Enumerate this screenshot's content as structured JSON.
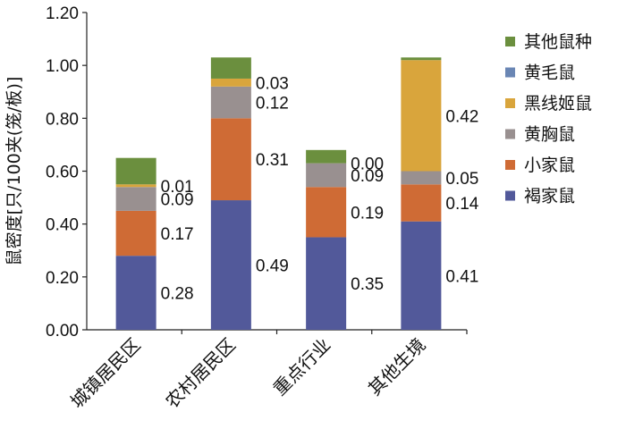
{
  "chart_data": {
    "type": "bar",
    "stacked": true,
    "title": "",
    "xlabel": "",
    "ylabel": "鼠密度[只/100夹(笼/板)]",
    "ylim": [
      0,
      1.2
    ],
    "yticks": [
      "0.00",
      "0.20",
      "0.40",
      "0.60",
      "0.80",
      "1.00",
      "1.20"
    ],
    "grid": false,
    "legend_position": "right",
    "categories": [
      "城镇居民区",
      "农村居民区",
      "重点行业",
      "其他生境"
    ],
    "series": [
      {
        "name": "褐家鼠",
        "color": "#52599a",
        "values": [
          0.28,
          0.49,
          0.35,
          0.41
        ],
        "labels": [
          "0.28",
          "0.49",
          "0.35",
          "0.41"
        ]
      },
      {
        "name": "小家鼠",
        "color": "#cf6b35",
        "values": [
          0.17,
          0.31,
          0.19,
          0.14
        ],
        "labels": [
          "0.17",
          "0.31",
          "0.19",
          "0.14"
        ]
      },
      {
        "name": "黄胸鼠",
        "color": "#999090",
        "values": [
          0.09,
          0.12,
          0.09,
          0.05
        ],
        "labels": [
          "0.09",
          "0.12",
          "0.09",
          "0.05"
        ]
      },
      {
        "name": "黑线姬鼠",
        "color": "#d9a53c",
        "values": [
          0.01,
          0.03,
          0.0,
          0.42
        ],
        "labels": [
          "0.01",
          "0.03",
          "0.00",
          "0.42"
        ]
      },
      {
        "name": "黄毛鼠",
        "color": "#6a86b4",
        "values": [
          0.0,
          0.0,
          0.0,
          0.0
        ],
        "labels": []
      },
      {
        "name": "其他鼠种",
        "color": "#6b8f3e",
        "values": [
          0.1,
          0.08,
          0.05,
          0.01
        ],
        "labels": []
      }
    ],
    "legend_order": [
      "其他鼠种",
      "黄毛鼠",
      "黑线姬鼠",
      "黄胸鼠",
      "小家鼠",
      "褐家鼠"
    ]
  }
}
